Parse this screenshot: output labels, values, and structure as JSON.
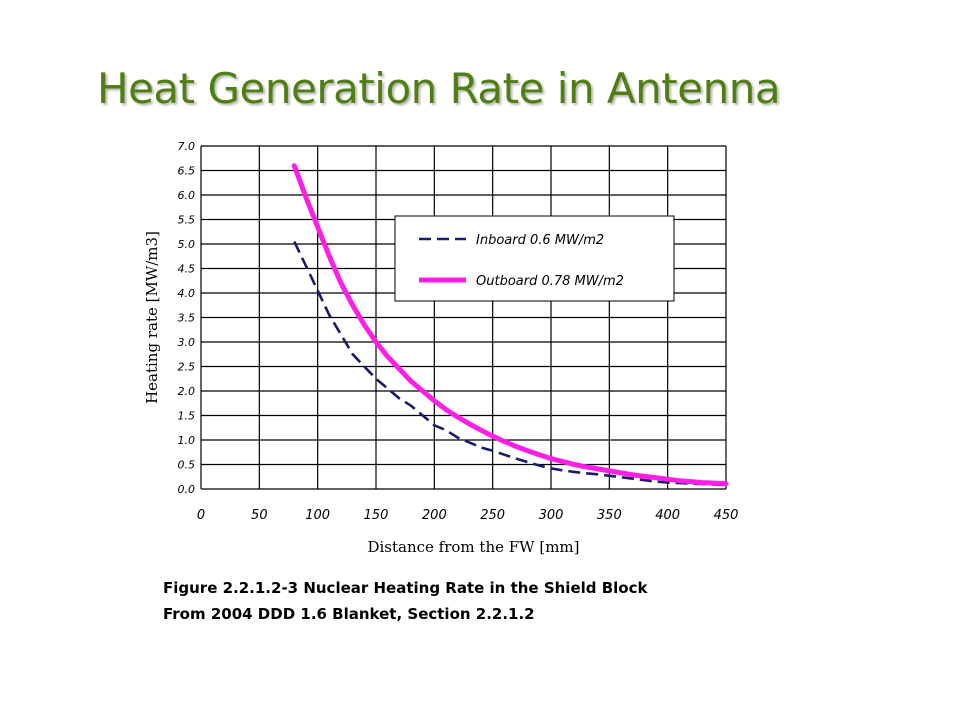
{
  "title": "Heat Generation Rate in Antenna",
  "caption": {
    "line1": "Figure 2.2.1.2-3 Nuclear Heating Rate in the Shield Block",
    "line2": "From 2004 DDD 1.6 Blanket, Section 2.2.1.2"
  },
  "colors": {
    "title": "#4f7f12",
    "inboard": "#1a1a6e",
    "outboard": "#ff1ee6",
    "grid": "#000000"
  },
  "chart_data": {
    "type": "line",
    "xlabel": "Distance from the FW  [mm]",
    "ylabel": "Heating rate [MW/m3]",
    "xlim": [
      0,
      450
    ],
    "ylim": [
      0.0,
      7.0
    ],
    "x_ticks": [
      0,
      50,
      100,
      150,
      200,
      250,
      300,
      350,
      400,
      450
    ],
    "x_tick_labels": [
      "0",
      "50",
      "100",
      "150",
      "200",
      "250",
      "300",
      "350",
      "400",
      "450"
    ],
    "y_ticks": [
      0.0,
      0.5,
      1.0,
      1.5,
      2.0,
      2.5,
      3.0,
      3.5,
      4.0,
      4.5,
      5.0,
      5.5,
      6.0,
      6.5,
      7.0
    ],
    "y_tick_labels": [
      "0.0",
      "0.5",
      "1.0",
      "1.5",
      "2.0",
      "2.5",
      "3.0",
      "3.5",
      "4.0",
      "4.5",
      "5.0",
      "5.5",
      "6.0",
      "6.5",
      "7.0"
    ],
    "grid": true,
    "legend_position": "upper-right",
    "series": [
      {
        "name": "Inboard 0.6 MW/m2",
        "style": "dashed",
        "points": [
          [
            80,
            5.05
          ],
          [
            90,
            4.55
          ],
          [
            100,
            4.05
          ],
          [
            110,
            3.55
          ],
          [
            120,
            3.15
          ],
          [
            130,
            2.75
          ],
          [
            140,
            2.5
          ],
          [
            150,
            2.25
          ],
          [
            160,
            2.05
          ],
          [
            170,
            1.85
          ],
          [
            180,
            1.7
          ],
          [
            190,
            1.5
          ],
          [
            200,
            1.3
          ],
          [
            210,
            1.2
          ],
          [
            220,
            1.05
          ],
          [
            230,
            0.95
          ],
          [
            240,
            0.85
          ],
          [
            250,
            0.78
          ],
          [
            260,
            0.7
          ],
          [
            270,
            0.62
          ],
          [
            280,
            0.55
          ],
          [
            290,
            0.48
          ],
          [
            300,
            0.42
          ],
          [
            310,
            0.38
          ],
          [
            320,
            0.35
          ],
          [
            330,
            0.32
          ],
          [
            340,
            0.3
          ],
          [
            350,
            0.27
          ],
          [
            360,
            0.24
          ],
          [
            370,
            0.21
          ],
          [
            380,
            0.18
          ],
          [
            390,
            0.15
          ],
          [
            400,
            0.13
          ],
          [
            410,
            0.12
          ],
          [
            420,
            0.11
          ],
          [
            430,
            0.1
          ],
          [
            440,
            0.09
          ],
          [
            450,
            0.08
          ]
        ]
      },
      {
        "name": "Outboard 0.78 MW/m2",
        "style": "solid",
        "points": [
          [
            80,
            6.6
          ],
          [
            90,
            5.95
          ],
          [
            100,
            5.35
          ],
          [
            110,
            4.75
          ],
          [
            120,
            4.2
          ],
          [
            130,
            3.75
          ],
          [
            140,
            3.35
          ],
          [
            150,
            3.0
          ],
          [
            160,
            2.7
          ],
          [
            170,
            2.45
          ],
          [
            180,
            2.2
          ],
          [
            190,
            2.0
          ],
          [
            200,
            1.8
          ],
          [
            210,
            1.62
          ],
          [
            220,
            1.47
          ],
          [
            230,
            1.33
          ],
          [
            240,
            1.2
          ],
          [
            250,
            1.08
          ],
          [
            260,
            0.97
          ],
          [
            270,
            0.87
          ],
          [
            280,
            0.78
          ],
          [
            290,
            0.7
          ],
          [
            300,
            0.62
          ],
          [
            310,
            0.56
          ],
          [
            320,
            0.5
          ],
          [
            330,
            0.45
          ],
          [
            340,
            0.41
          ],
          [
            350,
            0.37
          ],
          [
            360,
            0.33
          ],
          [
            370,
            0.29
          ],
          [
            380,
            0.26
          ],
          [
            390,
            0.23
          ],
          [
            400,
            0.2
          ],
          [
            410,
            0.17
          ],
          [
            420,
            0.15
          ],
          [
            430,
            0.13
          ],
          [
            440,
            0.12
          ],
          [
            450,
            0.11
          ]
        ]
      }
    ]
  }
}
